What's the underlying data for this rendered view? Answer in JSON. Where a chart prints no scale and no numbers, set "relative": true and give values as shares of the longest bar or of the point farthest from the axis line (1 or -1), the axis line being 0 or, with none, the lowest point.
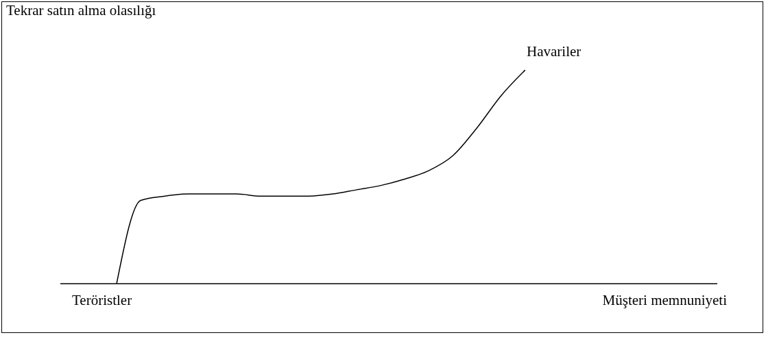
{
  "chart_data": {
    "type": "line",
    "ylabel": "Tekrar satın alma olasılığı",
    "xlabel": "Müşteri memnuniyeti",
    "annotations": [
      "Havariler",
      "Teröristler"
    ],
    "relative": true,
    "categories": [
      null,
      null,
      null,
      null,
      null,
      null,
      null,
      null,
      null,
      null,
      null,
      null,
      null,
      null,
      null,
      null,
      null,
      null,
      null,
      null,
      null,
      null,
      null,
      null,
      null,
      null,
      null,
      null
    ],
    "series": [
      {
        "color": "#000000",
        "values": [
          null,
          null,
          0,
          0.39,
          0.41,
          0.42,
          0.42,
          0.42,
          0.41,
          0.41,
          0.41,
          0.42,
          0.44,
          0.46,
          0.49,
          0.53,
          0.6,
          0.73,
          0.88,
          1,
          null,
          null,
          null,
          null,
          null,
          null,
          null,
          null
        ]
      }
    ],
    "marker": "none",
    "line_style": "solid",
    "legend": false,
    "grid": false
  }
}
